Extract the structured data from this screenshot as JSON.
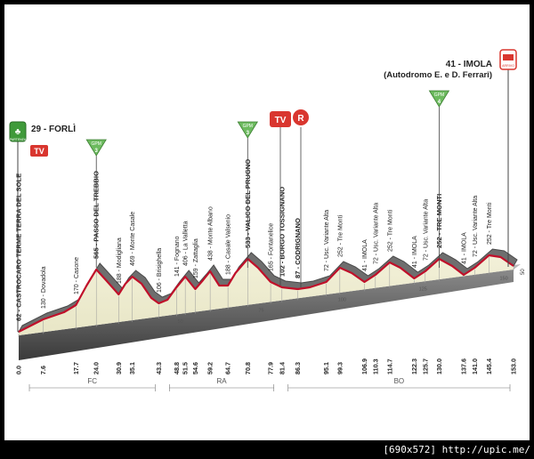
{
  "start": {
    "name": "29 - FORLÌ",
    "badge": "PARTENZA",
    "tv": "TV"
  },
  "finish": {
    "name": "41 - IMOLA",
    "subname": "(Autodromo E. e D. Ferrari)",
    "badge": "ARRIVO"
  },
  "kom_points": [
    {
      "label": "GPM",
      "category": "3",
      "km": 24.0
    },
    {
      "label": "GPM",
      "category": "3",
      "km": 70.8
    },
    {
      "label": "GPM",
      "category": "4",
      "km": 130.0
    }
  ],
  "broadcast": {
    "tv": "TV",
    "refresh": "R"
  },
  "distance_km": 153.0,
  "waypoints": [
    {
      "km": "0.0",
      "label": "62 - CASTROCARO TERME TERRA DEL SOLE",
      "bold": true
    },
    {
      "km": "7.6",
      "label": "130 - Dovadola",
      "bold": false
    },
    {
      "km": "17.7",
      "label": "170 - Casone",
      "bold": false
    },
    {
      "km": "24.0",
      "label": "565 - PASSO DEL TREBBIO",
      "bold": true
    },
    {
      "km": "30.9",
      "label": "188 - Modigliana",
      "bold": false
    },
    {
      "km": "35.1",
      "label": "469 - Monte Casale",
      "bold": false
    },
    {
      "km": "43.3",
      "label": "106 - Brisighella",
      "bold": false
    },
    {
      "km": "48.8",
      "label": "141 - Fognano",
      "bold": false
    },
    {
      "km": "51.5",
      "label": "406 - La Valletta",
      "bold": false
    },
    {
      "km": "54.6",
      "label": "159 - Zattaglia",
      "bold": false
    },
    {
      "km": "59.2",
      "label": "438 - Monte Albano",
      "bold": false
    },
    {
      "km": "64.7",
      "label": "188 - Casale Valsenio",
      "bold": false
    },
    {
      "km": "70.8",
      "label": "533 - VALICO DEL PRUGNO",
      "bold": true
    },
    {
      "km": "77.9",
      "label": "165 - Fontanelice",
      "bold": false
    },
    {
      "km": "81.4",
      "label": "102 - BORGO TOSSIGNANO",
      "bold": true
    },
    {
      "km": "86.3",
      "label": "87 - CODRIGNANO",
      "bold": true
    },
    {
      "km": "95.1",
      "label": "72 - Usc. Variante Alta",
      "bold": false
    },
    {
      "km": "99.3",
      "label": "252 - Tre Monti",
      "bold": false
    },
    {
      "km": "106.9",
      "label": "41 - IMOLA",
      "bold": false
    },
    {
      "km": "110.3",
      "label": "72 - Usc. Variante Alta",
      "bold": false
    },
    {
      "km": "114.7",
      "label": "252 - Tre Monti",
      "bold": false
    },
    {
      "km": "122.3",
      "label": "41 - IMOLA",
      "bold": false
    },
    {
      "km": "125.7",
      "label": "72 - Usc. Variante Alta",
      "bold": false
    },
    {
      "km": "130.0",
      "label": "252 - TRE MONTI",
      "bold": true
    },
    {
      "km": "137.6",
      "label": "41 - IMOLA",
      "bold": false
    },
    {
      "km": "141.0",
      "label": "72 - Usc. Variante Alta",
      "bold": false
    },
    {
      "km": "145.4",
      "label": "252 - Tre Monti",
      "bold": false
    },
    {
      "km": "153.0",
      "label": "",
      "bold": false
    }
  ],
  "km_markers": [
    "25",
    "50",
    "75",
    "100",
    "125",
    "150"
  ],
  "end_tick": "50",
  "provinces": [
    {
      "code": "FC",
      "from_km": 0,
      "to_km": 43.3
    },
    {
      "code": "RA",
      "from_km": 43.3,
      "to_km": 80
    },
    {
      "code": "BO",
      "from_km": 80,
      "to_km": 153
    }
  ],
  "footer": {
    "text": "[690x572] http://upic.me/"
  }
}
